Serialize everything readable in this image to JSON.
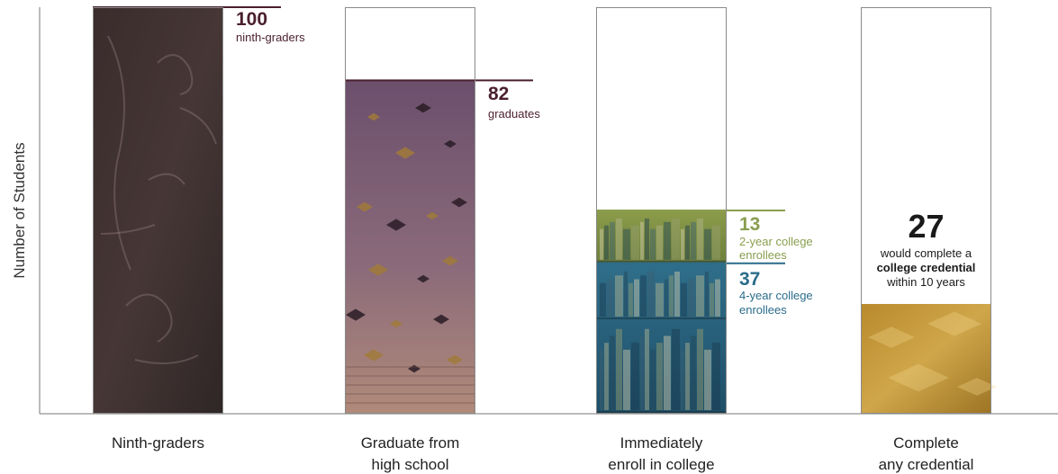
{
  "chart_data": {
    "type": "bar",
    "ylabel": "Number of Students",
    "ylim": [
      0,
      100
    ],
    "categories": [
      [
        "Ninth-graders"
      ],
      [
        "Graduate from",
        "high school"
      ],
      [
        "Immediately",
        "enroll in college"
      ],
      [
        "Complete",
        "any credential"
      ]
    ],
    "bars": [
      {
        "total": 100,
        "value": 100,
        "label_number": "100",
        "label_text": [
          "ninth-graders"
        ]
      },
      {
        "total": 100,
        "value": 82,
        "label_number": "82",
        "label_text": [
          "graduates"
        ]
      },
      {
        "total": 100,
        "value": 50,
        "segments": [
          {
            "value": 13,
            "label_number": "13",
            "label_text": [
              "2-year college",
              "enrollees"
            ],
            "color": "#8a9e4f"
          },
          {
            "value": 37,
            "label_number": "37",
            "label_text": [
              "4-year college",
              "enrollees"
            ],
            "color": "#2b6c8a"
          }
        ]
      },
      {
        "total": 100,
        "value": 27,
        "label_number": "27",
        "label_text": [
          "would complete a",
          "college credential",
          "within 10 years"
        ]
      }
    ],
    "colors": {
      "maroon": "#4a1f2e",
      "green": "#8a9e4f",
      "blue": "#2b6c8a",
      "gold": "#b88a2a"
    }
  }
}
